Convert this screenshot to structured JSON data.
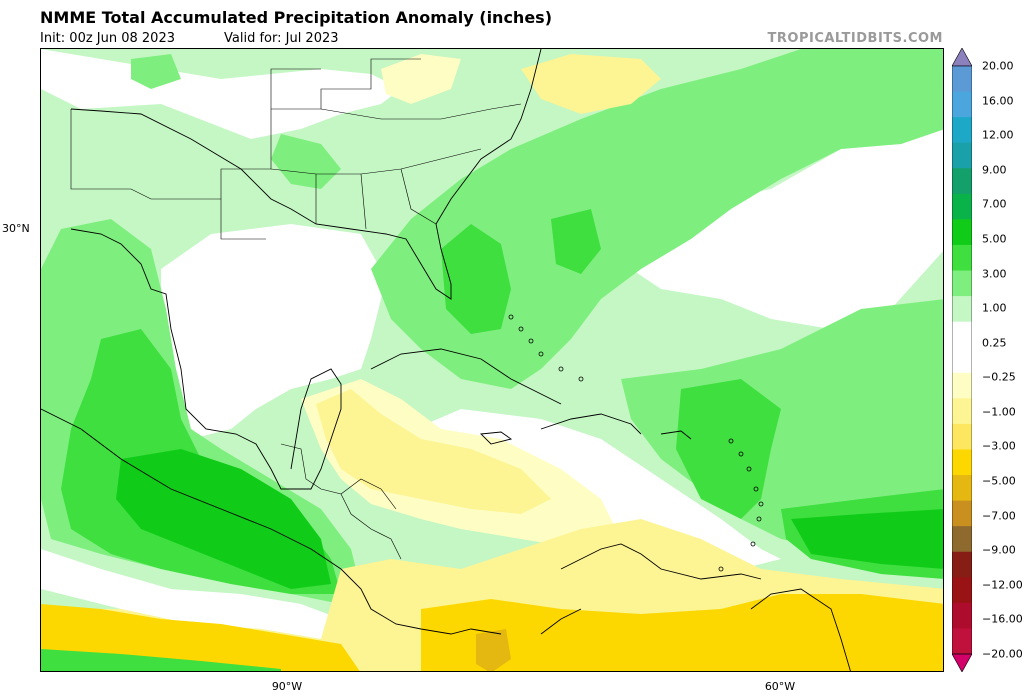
{
  "header": {
    "title": "NMME Total Accumulated Precipitation Anomaly (inches)",
    "init": "Init: 00z Jun 08 2023",
    "valid": "Valid for: Jul 2023",
    "brand": "TROPICALTIDBITS.COM"
  },
  "axes": {
    "lat_label": "30°N",
    "lon_labels": [
      "90°W",
      "60°W"
    ]
  },
  "colorbar": {
    "tick_labels": [
      "20.00",
      "16.00",
      "12.00",
      "9.00",
      "7.00",
      "5.00",
      "3.00",
      "1.00",
      "0.25",
      "−0.25",
      "−1.00",
      "−3.00",
      "−5.00",
      "−7.00",
      "−9.00",
      "−12.00",
      "−16.00",
      "−20.00"
    ],
    "colors": [
      "#8c80bd",
      "#5c9ad6",
      "#4aa6dc",
      "#1ea8c8",
      "#19a0a8",
      "#14a06a",
      "#0ab34a",
      "#10cc18",
      "#3edf3e",
      "#7eef7e",
      "#c4f7c4",
      "#ffffff",
      "#ffffff",
      "#fefec4",
      "#fdf494",
      "#fde660",
      "#fdd800",
      "#e4b810",
      "#c99020",
      "#8e6a2f",
      "#871e16",
      "#9a1314",
      "#ad0c2c",
      "#c0103c",
      "#d4006a"
    ]
  },
  "map": {
    "legend_scale_unit": "inches",
    "colors": {
      "light_green": "#c4f7c4",
      "green": "#7eef7e",
      "mid_green": "#3edf3e",
      "dark_green": "#10cc18",
      "light_yellow": "#fefec4",
      "yellow": "#fdf494",
      "gold": "#fdd800",
      "orange": "#e4b810"
    }
  }
}
